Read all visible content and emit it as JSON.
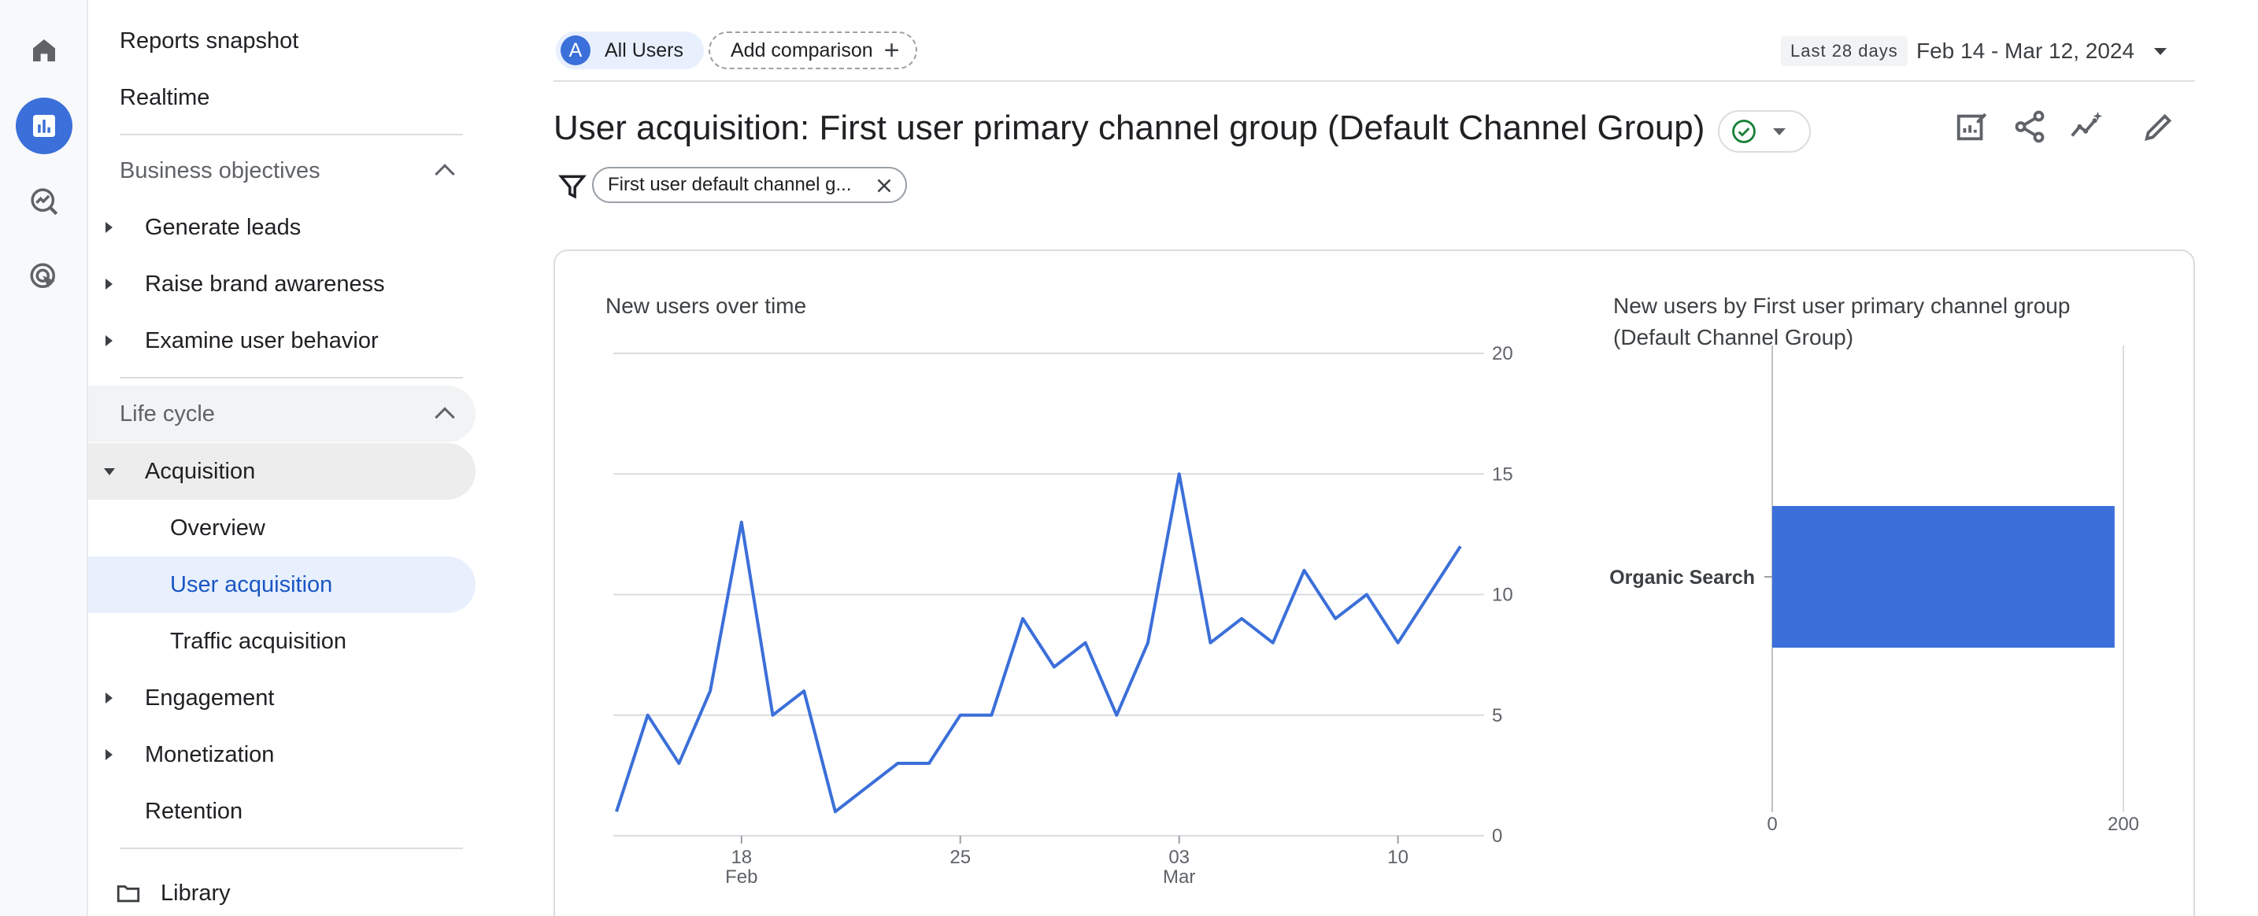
{
  "sidebar": {
    "items": [
      {
        "label": "Reports snapshot"
      },
      {
        "label": "Realtime"
      },
      {
        "label": "Business objectives"
      },
      {
        "label": "Generate leads"
      },
      {
        "label": "Raise brand awareness"
      },
      {
        "label": "Examine user behavior"
      },
      {
        "label": "Life cycle"
      },
      {
        "label": "Acquisition"
      },
      {
        "label": "Overview"
      },
      {
        "label": "User acquisition"
      },
      {
        "label": "Traffic acquisition"
      },
      {
        "label": "Engagement"
      },
      {
        "label": "Monetization"
      },
      {
        "label": "Retention"
      },
      {
        "label": "Library"
      }
    ],
    "active_item": "User acquisition"
  },
  "rail": {
    "icons": [
      "home-icon",
      "reports-icon",
      "explore-icon",
      "advertising-icon"
    ],
    "active": "reports-icon"
  },
  "toolbar": {
    "segment_avatar": "A",
    "segment_label": "All Users",
    "add_comparison_label": "Add comparison",
    "date_badge": "Last 28 days",
    "date_range": "Feb 14 - Mar 12, 2024"
  },
  "header": {
    "title": "User acquisition: First user primary channel group (Default Channel Group)",
    "filter_chip": "First user default channel g..."
  },
  "colors": {
    "accent": "#3b6fd9",
    "status_ok": "#188038"
  },
  "chart_data": [
    {
      "type": "line",
      "title": "New users over time",
      "x": [
        "Feb 14",
        "Feb 15",
        "Feb 16",
        "Feb 17",
        "Feb 18",
        "Feb 19",
        "Feb 20",
        "Feb 21",
        "Feb 22",
        "Feb 23",
        "Feb 24",
        "Feb 25",
        "Feb 26",
        "Feb 27",
        "Feb 28",
        "Feb 29",
        "Mar 01",
        "Mar 02",
        "Mar 03",
        "Mar 04",
        "Mar 05",
        "Mar 06",
        "Mar 07",
        "Mar 08",
        "Mar 09",
        "Mar 10",
        "Mar 11",
        "Mar 12"
      ],
      "series": [
        {
          "values": [
            1,
            5,
            3,
            6,
            13,
            5,
            6,
            1,
            2,
            3,
            3,
            5,
            5,
            9,
            7,
            8,
            5,
            8,
            15,
            8,
            9,
            8,
            11,
            9,
            10,
            8,
            10,
            12
          ]
        }
      ],
      "xticks": [
        {
          "label": "18",
          "sub": "Feb",
          "index": 4
        },
        {
          "label": "25",
          "sub": "",
          "index": 11
        },
        {
          "label": "03",
          "sub": "Mar",
          "index": 18
        },
        {
          "label": "10",
          "sub": "",
          "index": 25
        }
      ],
      "yticks": [
        "0",
        "5",
        "10",
        "15",
        "20"
      ],
      "ylim": [
        0,
        20
      ],
      "yaxis_side": "right",
      "grid": true
    },
    {
      "type": "bar",
      "orientation": "horizontal",
      "title": "New users by First user primary channel group (Default Channel Group)",
      "categories": [
        "Organic Search"
      ],
      "values": [
        195
      ],
      "xticks": [
        "0",
        "200"
      ],
      "xlim": [
        0,
        200
      ]
    }
  ]
}
